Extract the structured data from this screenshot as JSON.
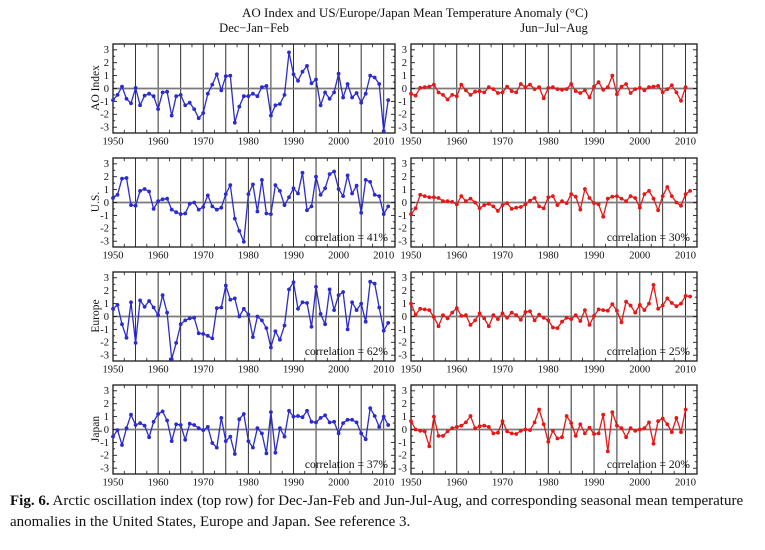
{
  "title": "AO Index and US/Europe/Japan Mean Temperature Anomaly (°C)",
  "columns": [
    {
      "label": "Dec−Jan−Feb"
    },
    {
      "label": "Jun−Jul−Aug"
    }
  ],
  "rows": [
    {
      "label": "AO Index"
    },
    {
      "label": "U.S."
    },
    {
      "label": "Europe"
    },
    {
      "label": "Japan"
    }
  ],
  "caption": {
    "tag": "Fig. 6.",
    "text": " Arctic oscillation index (top row) for Dec-Jan-Feb and Jun-Jul-Aug, and corresponding seasonal mean temperature anomalies in the United States, Europe and Japan.  See reference 3."
  },
  "colors": {
    "djf": "#2b2bd0",
    "jja": "#e81717",
    "grid": "#1a1a1a",
    "zero_line": "#7a7a7a",
    "text": "#111111"
  },
  "chart_data": {
    "type": "line",
    "x_start_year": 1950,
    "x_step_years": 1,
    "xlim": [
      1950,
      2012.5
    ],
    "ylim": [
      -3.45,
      3.45
    ],
    "x_ticks": [
      1950,
      1960,
      1970,
      1980,
      1990,
      2000,
      2010
    ],
    "y_ticks": [
      3,
      2,
      1,
      0,
      -1,
      -2,
      -3
    ],
    "gridlines_every_years": 5,
    "legend": "none",
    "panels": [
      {
        "row": "AO Index",
        "season": "Dec-Jan-Feb",
        "color": "djf",
        "correlation_label": "",
        "values": [
          -0.9,
          -0.5,
          0.15,
          -0.8,
          -1.15,
          0.05,
          -1.3,
          -0.55,
          -0.4,
          -0.6,
          -1.6,
          -0.3,
          -0.25,
          -2.1,
          -0.6,
          -0.5,
          -1.3,
          -1.1,
          -1.6,
          -2.3,
          -1.9,
          -0.4,
          0.3,
          1.1,
          -0.15,
          0.95,
          1.0,
          -2.65,
          -1.4,
          -0.6,
          -0.6,
          -0.4,
          -0.6,
          0.1,
          0.2,
          -2.1,
          -1.3,
          -1.2,
          -0.5,
          2.8,
          1.1,
          0.6,
          1.3,
          1.75,
          0.4,
          0.7,
          -1.3,
          -0.3,
          -0.8,
          -0.3,
          1.15,
          -0.7,
          0.35,
          -0.7,
          -0.35,
          -1.1,
          -0.4,
          1.0,
          0.85,
          0.35,
          -3.3,
          -0.9
        ]
      },
      {
        "row": "AO Index",
        "season": "Jun-Jul-Aug",
        "color": "jja",
        "correlation_label": "",
        "values": [
          -0.4,
          -0.55,
          0.05,
          0.1,
          0.15,
          0.3,
          -0.3,
          -0.5,
          -0.85,
          -0.5,
          -0.6,
          0.3,
          -0.15,
          -0.5,
          -0.25,
          -0.2,
          -0.3,
          0.1,
          -0.05,
          -0.35,
          -0.3,
          0.15,
          -0.2,
          -0.3,
          0.35,
          0.1,
          0.3,
          -0.05,
          0.1,
          -0.75,
          0.05,
          0.1,
          -0.05,
          -0.1,
          -0.05,
          0.35,
          -0.2,
          -0.35,
          -0.15,
          -0.7,
          0.15,
          0.5,
          -0.1,
          0.1,
          1.0,
          -0.45,
          0.15,
          0.35,
          -0.35,
          -0.05,
          0.05,
          -0.15,
          0.1,
          0.15,
          0.2,
          -0.3,
          -0.05,
          0.25,
          -0.3,
          -0.95,
          0.1
        ]
      },
      {
        "row": "U.S.",
        "season": "Dec-Jan-Feb",
        "color": "djf",
        "correlation_label": "correlation = 41%",
        "values": [
          0.35,
          0.6,
          1.85,
          1.9,
          -0.2,
          -0.25,
          0.9,
          1.05,
          0.85,
          -0.5,
          0.1,
          0.25,
          0.3,
          -0.55,
          -0.75,
          -0.9,
          -0.85,
          -0.1,
          0.0,
          -0.55,
          -0.35,
          0.55,
          -0.3,
          -0.55,
          -0.4,
          0.65,
          1.35,
          -1.25,
          -2.2,
          -3.05,
          0.65,
          1.4,
          -0.7,
          1.75,
          -0.85,
          -0.9,
          1.35,
          0.9,
          -0.2,
          0.4,
          1.1,
          0.7,
          2.3,
          -0.6,
          -0.3,
          2.0,
          0.6,
          1.1,
          2.2,
          2.4,
          1.05,
          0.5,
          2.1,
          0.7,
          1.3,
          -0.8,
          1.75,
          1.6,
          0.6,
          0.5,
          -0.9,
          -0.3
        ]
      },
      {
        "row": "U.S.",
        "season": "Jun-Jul-Aug",
        "color": "jja",
        "correlation_label": "correlation = 30%",
        "values": [
          -0.9,
          -0.45,
          0.6,
          0.5,
          0.4,
          0.4,
          0.35,
          0.1,
          0.1,
          0.05,
          -0.15,
          0.5,
          0.1,
          0.3,
          0.0,
          -0.45,
          -0.2,
          -0.1,
          -0.3,
          -0.65,
          -0.2,
          -0.05,
          -0.5,
          -0.4,
          -0.35,
          -0.15,
          0.15,
          0.35,
          -0.3,
          -0.45,
          0.4,
          0.5,
          -0.2,
          0.1,
          -0.05,
          0.65,
          0.45,
          -0.55,
          1.05,
          0.35,
          -0.05,
          -0.15,
          -1.1,
          0.3,
          0.45,
          0.5,
          0.3,
          0.1,
          0.5,
          0.35,
          -0.4,
          0.65,
          0.9,
          0.3,
          -0.6,
          0.5,
          1.2,
          0.5,
          0.0,
          -0.25,
          0.65,
          0.9
        ]
      },
      {
        "row": "Europe",
        "season": "Dec-Jan-Feb",
        "color": "djf",
        "correlation_label": "correlation = 62%",
        "values": [
          0.6,
          0.9,
          -0.6,
          -1.65,
          1.1,
          -2.05,
          1.25,
          0.75,
          1.2,
          0.7,
          0.1,
          1.65,
          0.3,
          -3.3,
          -2.05,
          -0.6,
          -0.3,
          -0.15,
          -0.1,
          -1.3,
          -1.35,
          -1.5,
          -1.7,
          0.65,
          0.7,
          2.4,
          1.3,
          1.4,
          0.0,
          0.6,
          0.15,
          -1.6,
          0.0,
          -0.3,
          -0.9,
          -2.4,
          -1.15,
          -1.8,
          -0.7,
          2.1,
          2.65,
          0.6,
          1.1,
          1.05,
          -0.8,
          2.3,
          0.2,
          -0.6,
          2.1,
          0.5,
          1.65,
          1.9,
          -1.0,
          1.1,
          0.5,
          1.0,
          -0.4,
          2.7,
          2.55,
          0.7,
          -1.1,
          -0.5
        ]
      },
      {
        "row": "Europe",
        "season": "Jun-Jul-Aug",
        "color": "jja",
        "correlation_label": "correlation = 25%",
        "values": [
          1.0,
          0.15,
          0.6,
          0.55,
          0.5,
          -0.05,
          -0.75,
          0.1,
          -0.15,
          0.3,
          0.65,
          0.05,
          0.1,
          -0.65,
          -0.3,
          0.25,
          -0.15,
          -0.75,
          0.1,
          -0.2,
          0.25,
          -0.1,
          0.3,
          0.1,
          -0.25,
          0.35,
          0.4,
          -0.3,
          0.15,
          -0.1,
          -0.3,
          -0.85,
          -0.9,
          -0.4,
          -0.1,
          -0.2,
          0.1,
          -0.35,
          0.5,
          -0.65,
          0.05,
          0.55,
          0.5,
          0.45,
          0.95,
          0.45,
          -0.45,
          1.15,
          0.85,
          0.3,
          0.9,
          0.5,
          1.0,
          2.45,
          0.6,
          0.85,
          1.4,
          1.05,
          0.8,
          1.0,
          1.6,
          1.55
        ]
      },
      {
        "row": "Japan",
        "season": "Dec-Jan-Feb",
        "color": "djf",
        "correlation_label": "correlation = 37%",
        "values": [
          -0.55,
          -0.05,
          -1.2,
          0.1,
          1.15,
          0.35,
          0.5,
          0.3,
          -0.6,
          0.6,
          1.2,
          1.4,
          0.7,
          -0.9,
          0.4,
          0.35,
          -0.8,
          0.45,
          0.35,
          0.1,
          -0.05,
          0.2,
          -1.05,
          -1.4,
          0.9,
          -0.9,
          -0.55,
          -1.9,
          0.8,
          1.2,
          -0.9,
          -1.4,
          0.1,
          -0.3,
          -1.85,
          1.35,
          -1.8,
          0.1,
          -0.55,
          1.45,
          1.0,
          1.05,
          0.95,
          1.45,
          0.6,
          0.55,
          0.9,
          1.1,
          0.55,
          0.6,
          -0.3,
          0.5,
          0.75,
          0.75,
          0.55,
          -0.3,
          -0.75,
          1.65,
          1.05,
          0.2,
          1.0,
          0.35
        ]
      },
      {
        "row": "Japan",
        "season": "Jun-Jul-Aug",
        "color": "jja",
        "correlation_label": "correlation = 20%",
        "values": [
          0.65,
          0.0,
          -0.1,
          -0.15,
          -1.3,
          1.0,
          -0.5,
          -0.5,
          -0.15,
          0.1,
          0.2,
          0.3,
          0.55,
          1.05,
          0.1,
          0.25,
          0.3,
          0.2,
          -0.3,
          -0.25,
          0.65,
          -0.15,
          -0.3,
          -0.35,
          -0.1,
          0.0,
          -0.05,
          0.55,
          1.55,
          0.4,
          -0.95,
          -0.1,
          -0.7,
          -0.6,
          1.05,
          0.5,
          -0.5,
          0.4,
          -0.3,
          0.15,
          -0.35,
          -0.3,
          1.15,
          -1.7,
          1.35,
          0.3,
          0.1,
          -0.6,
          0.1,
          -0.1,
          0.0,
          0.1,
          0.55,
          -1.1,
          0.65,
          0.85,
          0.4,
          -0.2,
          0.9,
          -0.2,
          1.55
        ]
      }
    ]
  }
}
